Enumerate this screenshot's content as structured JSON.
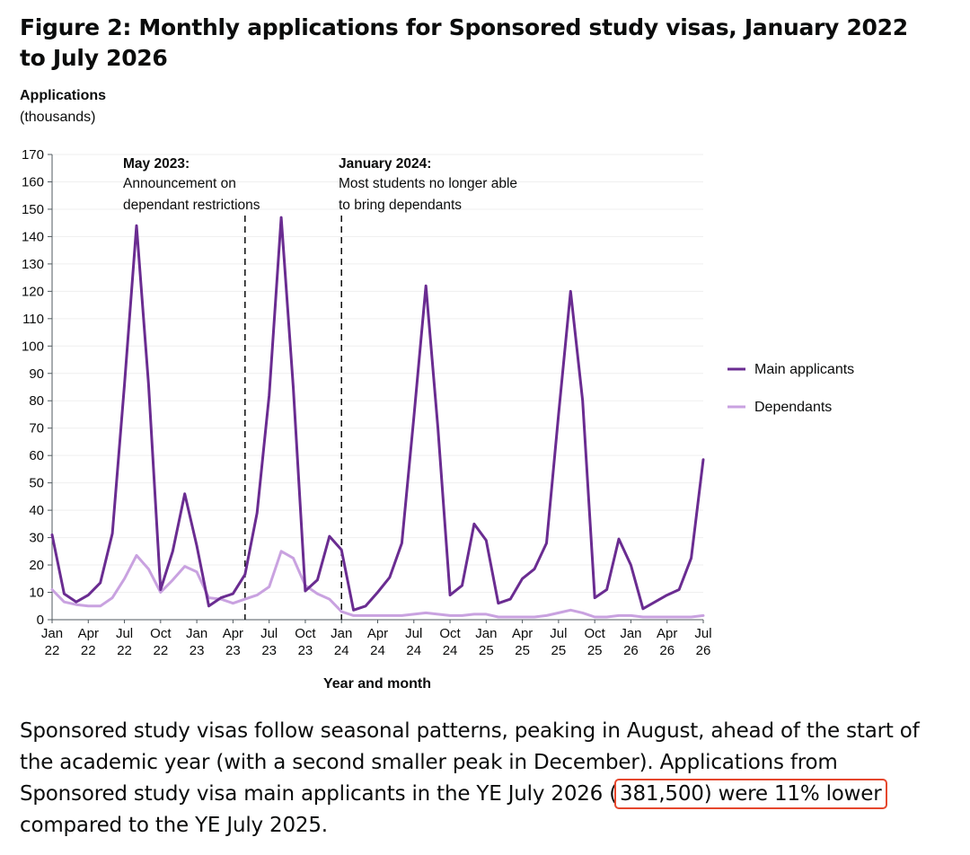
{
  "figure": {
    "title": "Figure 2: Monthly applications for Sponsored study visas, January 2022 to July 2026"
  },
  "chart_data": {
    "type": "line",
    "title": "Figure 2: Monthly applications for Sponsored study visas, January 2022 to July 2026",
    "ylabel_line1": "Applications",
    "ylabel_line2": "(thousands)",
    "xlabel": "Year and month",
    "ylim": [
      0,
      170
    ],
    "yticks": [
      0,
      10,
      20,
      30,
      40,
      50,
      60,
      70,
      80,
      90,
      100,
      110,
      120,
      130,
      140,
      150,
      160,
      170
    ],
    "grid": true,
    "legend_position": "right",
    "x": [
      "Jan 22",
      "Feb 22",
      "Mar 22",
      "Apr 22",
      "May 22",
      "Jun 22",
      "Jul 22",
      "Aug 22",
      "Sep 22",
      "Oct 22",
      "Nov 22",
      "Dec 22",
      "Jan 23",
      "Feb 23",
      "Mar 23",
      "Apr 23",
      "May 23",
      "Jun 23",
      "Jul 23",
      "Aug 23",
      "Sep 23",
      "Oct 23",
      "Nov 23",
      "Dec 23",
      "Jan 24",
      "Feb 24",
      "Mar 24",
      "Apr 24",
      "May 24",
      "Jun 24",
      "Jul 24",
      "Aug 24",
      "Sep 24",
      "Oct 24",
      "Nov 24",
      "Dec 24",
      "Jan 25",
      "Feb 25",
      "Mar 25",
      "Apr 25",
      "May 25",
      "Jun 25",
      "Jul 25",
      "Aug 25",
      "Sep 25",
      "Oct 25",
      "Nov 25",
      "Dec 25",
      "Jan 26",
      "Feb 26",
      "Mar 26",
      "Apr 26",
      "May 26",
      "Jun 26",
      "Jul 26"
    ],
    "xtick_labels": [
      {
        "index": 0,
        "line1": "Jan",
        "line2": "22"
      },
      {
        "index": 3,
        "line1": "Apr",
        "line2": "22"
      },
      {
        "index": 6,
        "line1": "Jul",
        "line2": "22"
      },
      {
        "index": 9,
        "line1": "Oct",
        "line2": "22"
      },
      {
        "index": 12,
        "line1": "Jan",
        "line2": "23"
      },
      {
        "index": 15,
        "line1": "Apr",
        "line2": "23"
      },
      {
        "index": 18,
        "line1": "Jul",
        "line2": "23"
      },
      {
        "index": 21,
        "line1": "Oct",
        "line2": "23"
      },
      {
        "index": 24,
        "line1": "Jan",
        "line2": "24"
      },
      {
        "index": 27,
        "line1": "Apr",
        "line2": "24"
      },
      {
        "index": 30,
        "line1": "Jul",
        "line2": "24"
      },
      {
        "index": 33,
        "line1": "Oct",
        "line2": "24"
      },
      {
        "index": 36,
        "line1": "Jan",
        "line2": "25"
      },
      {
        "index": 39,
        "line1": "Apr",
        "line2": "25"
      },
      {
        "index": 42,
        "line1": "Jul",
        "line2": "25"
      },
      {
        "index": 45,
        "line1": "Oct",
        "line2": "25"
      },
      {
        "index": 48,
        "line1": "Jan",
        "line2": "26"
      },
      {
        "index": 51,
        "line1": "Apr",
        "line2": "26"
      },
      {
        "index": 54,
        "line1": "Jul",
        "line2": "26"
      }
    ],
    "series": [
      {
        "name": "Main applicants",
        "color": "#6a2c91",
        "values": [
          31,
          9.5,
          6.5,
          9,
          13.5,
          31.5,
          86,
          144,
          86,
          11,
          25,
          46,
          27,
          5,
          8,
          9.5,
          16.5,
          39,
          82,
          147,
          85,
          10.5,
          14.5,
          30.5,
          25.5,
          3.5,
          5,
          10,
          15.5,
          28,
          74,
          122,
          70,
          9,
          12.5,
          35,
          29,
          6,
          7.5,
          15,
          18.5,
          28,
          75,
          120,
          80,
          8,
          11,
          29.5,
          20,
          4,
          6.5,
          9,
          11,
          22.5,
          58.5
        ]
      },
      {
        "name": "Dependants",
        "color": "#c9a2e0",
        "values": [
          11,
          6.5,
          5.5,
          5,
          5,
          8,
          15,
          23.5,
          18.5,
          10,
          14.5,
          19.5,
          17.5,
          8,
          7.5,
          6,
          7.5,
          9,
          12,
          25,
          22.5,
          12.5,
          9.5,
          7.5,
          3,
          1.5,
          1.5,
          1.5,
          1.5,
          1.5,
          2,
          2.5,
          2,
          1.5,
          1.5,
          2,
          2,
          1,
          1,
          1,
          1,
          1.5,
          2.5,
          3.5,
          2.5,
          1,
          1,
          1.5,
          1.5,
          1,
          1,
          1,
          1,
          1,
          1.5
        ]
      }
    ],
    "annotations": [
      {
        "index": 16,
        "title": "May 2023:",
        "line1": "Announcement on",
        "line2": "dependant restrictions"
      },
      {
        "index": 24,
        "title": "January 2024:",
        "line1": "Most students no longer able",
        "line2": "to bring dependants"
      }
    ]
  },
  "caption": {
    "line1": "Sponsored study visas follow seasonal patterns, peaking in August, ahead of the start of",
    "line2": "the academic year (with a second smaller peak in December). Applications from",
    "line3_before": "Sponsored study visa main applicants in the YE July 2026 (",
    "line3_highlight": "381,500) were 11% lower",
    "line4": "compared to the YE July 2025."
  }
}
